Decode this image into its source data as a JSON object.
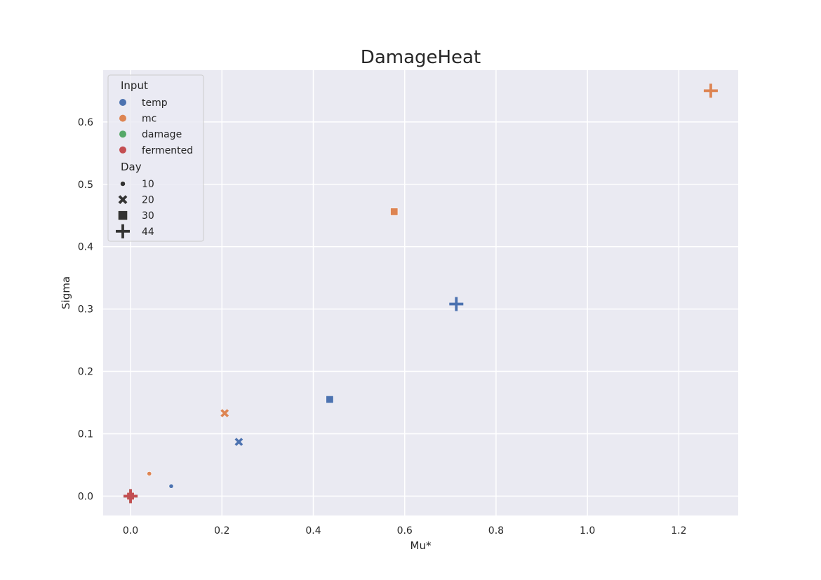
{
  "chart_data": {
    "type": "scatter",
    "title": "DamageHeat",
    "xlabel": "Mu*",
    "ylabel": "Sigma",
    "xlim": [
      -0.06,
      1.33
    ],
    "ylim": [
      -0.031,
      0.683
    ],
    "grid": true,
    "xticks": [
      0.0,
      0.2,
      0.4,
      0.6,
      0.8,
      1.0,
      1.2
    ],
    "xtick_labels": [
      "0.0",
      "0.2",
      "0.4",
      "0.6",
      "0.8",
      "1.0",
      "1.2"
    ],
    "yticks": [
      0.0,
      0.1,
      0.2,
      0.3,
      0.4,
      0.5,
      0.6
    ],
    "ytick_labels": [
      "0.0",
      "0.1",
      "0.2",
      "0.3",
      "0.4",
      "0.5",
      "0.6"
    ],
    "legend": {
      "placement": "top-left",
      "hue_title": "Input",
      "hue_entries": [
        {
          "label": "temp",
          "color": "#4c72b0"
        },
        {
          "label": "mc",
          "color": "#dd8452"
        },
        {
          "label": "damage",
          "color": "#55a868"
        },
        {
          "label": "fermented",
          "color": "#c44e52"
        }
      ],
      "style_title": "Day",
      "style_entries": [
        {
          "label": "10",
          "marker": "circle"
        },
        {
          "label": "20",
          "marker": "x"
        },
        {
          "label": "30",
          "marker": "square"
        },
        {
          "label": "44",
          "marker": "plus"
        }
      ]
    },
    "points": [
      {
        "input": "temp",
        "day": "10",
        "x": 0.089,
        "y": 0.016
      },
      {
        "input": "mc",
        "day": "10",
        "x": 0.041,
        "y": 0.036
      },
      {
        "input": "damage",
        "day": "10",
        "x": 0.0,
        "y": 0.0
      },
      {
        "input": "fermented",
        "day": "10",
        "x": 0.0,
        "y": 0.0
      },
      {
        "input": "temp",
        "day": "20",
        "x": 0.237,
        "y": 0.087
      },
      {
        "input": "mc",
        "day": "20",
        "x": 0.206,
        "y": 0.133
      },
      {
        "input": "damage",
        "day": "20",
        "x": 0.0,
        "y": 0.0
      },
      {
        "input": "fermented",
        "day": "20",
        "x": 0.0,
        "y": 0.0
      },
      {
        "input": "temp",
        "day": "30",
        "x": 0.436,
        "y": 0.155
      },
      {
        "input": "mc",
        "day": "30",
        "x": 0.577,
        "y": 0.456
      },
      {
        "input": "damage",
        "day": "30",
        "x": 0.0,
        "y": 0.0
      },
      {
        "input": "fermented",
        "day": "30",
        "x": 0.0,
        "y": 0.0
      },
      {
        "input": "temp",
        "day": "44",
        "x": 0.713,
        "y": 0.308
      },
      {
        "input": "mc",
        "day": "44",
        "x": 1.27,
        "y": 0.65
      },
      {
        "input": "damage",
        "day": "44",
        "x": 0.0,
        "y": 0.0
      },
      {
        "input": "fermented",
        "day": "44",
        "x": 0.0,
        "y": 0.0
      }
    ]
  }
}
